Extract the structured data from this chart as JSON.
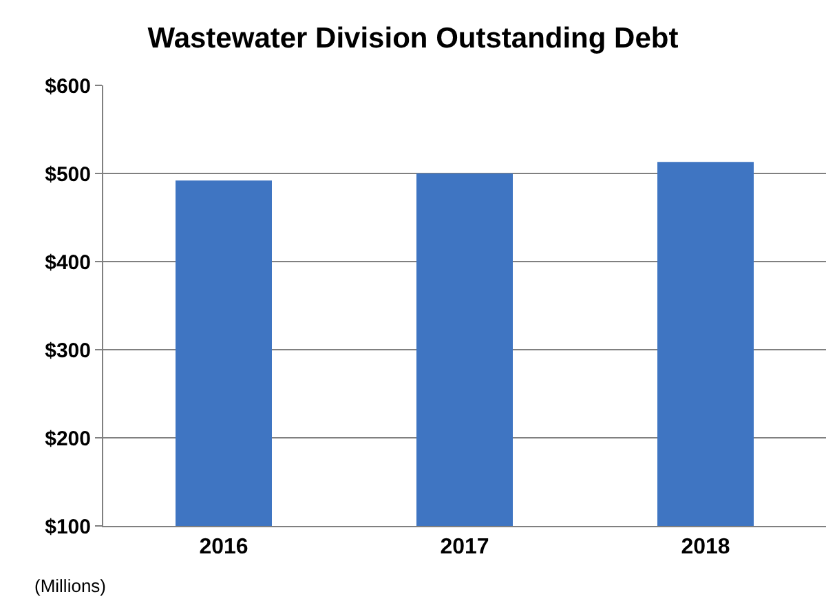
{
  "chart_data": {
    "type": "bar",
    "title": "Wastewater Division Outstanding Debt",
    "categories": [
      "2016",
      "2017",
      "2018"
    ],
    "values": [
      492,
      500,
      513
    ],
    "color": "#3f75c2",
    "ylim": [
      100,
      600
    ],
    "yticks": [
      {
        "value": 100,
        "label": "$100"
      },
      {
        "value": 200,
        "label": "$200"
      },
      {
        "value": 300,
        "label": "$300"
      },
      {
        "value": 400,
        "label": "$400"
      },
      {
        "value": 500,
        "label": "$500"
      },
      {
        "value": 600,
        "label": "$600"
      }
    ],
    "grid": "y",
    "annotations": [
      "(Millions)"
    ]
  }
}
